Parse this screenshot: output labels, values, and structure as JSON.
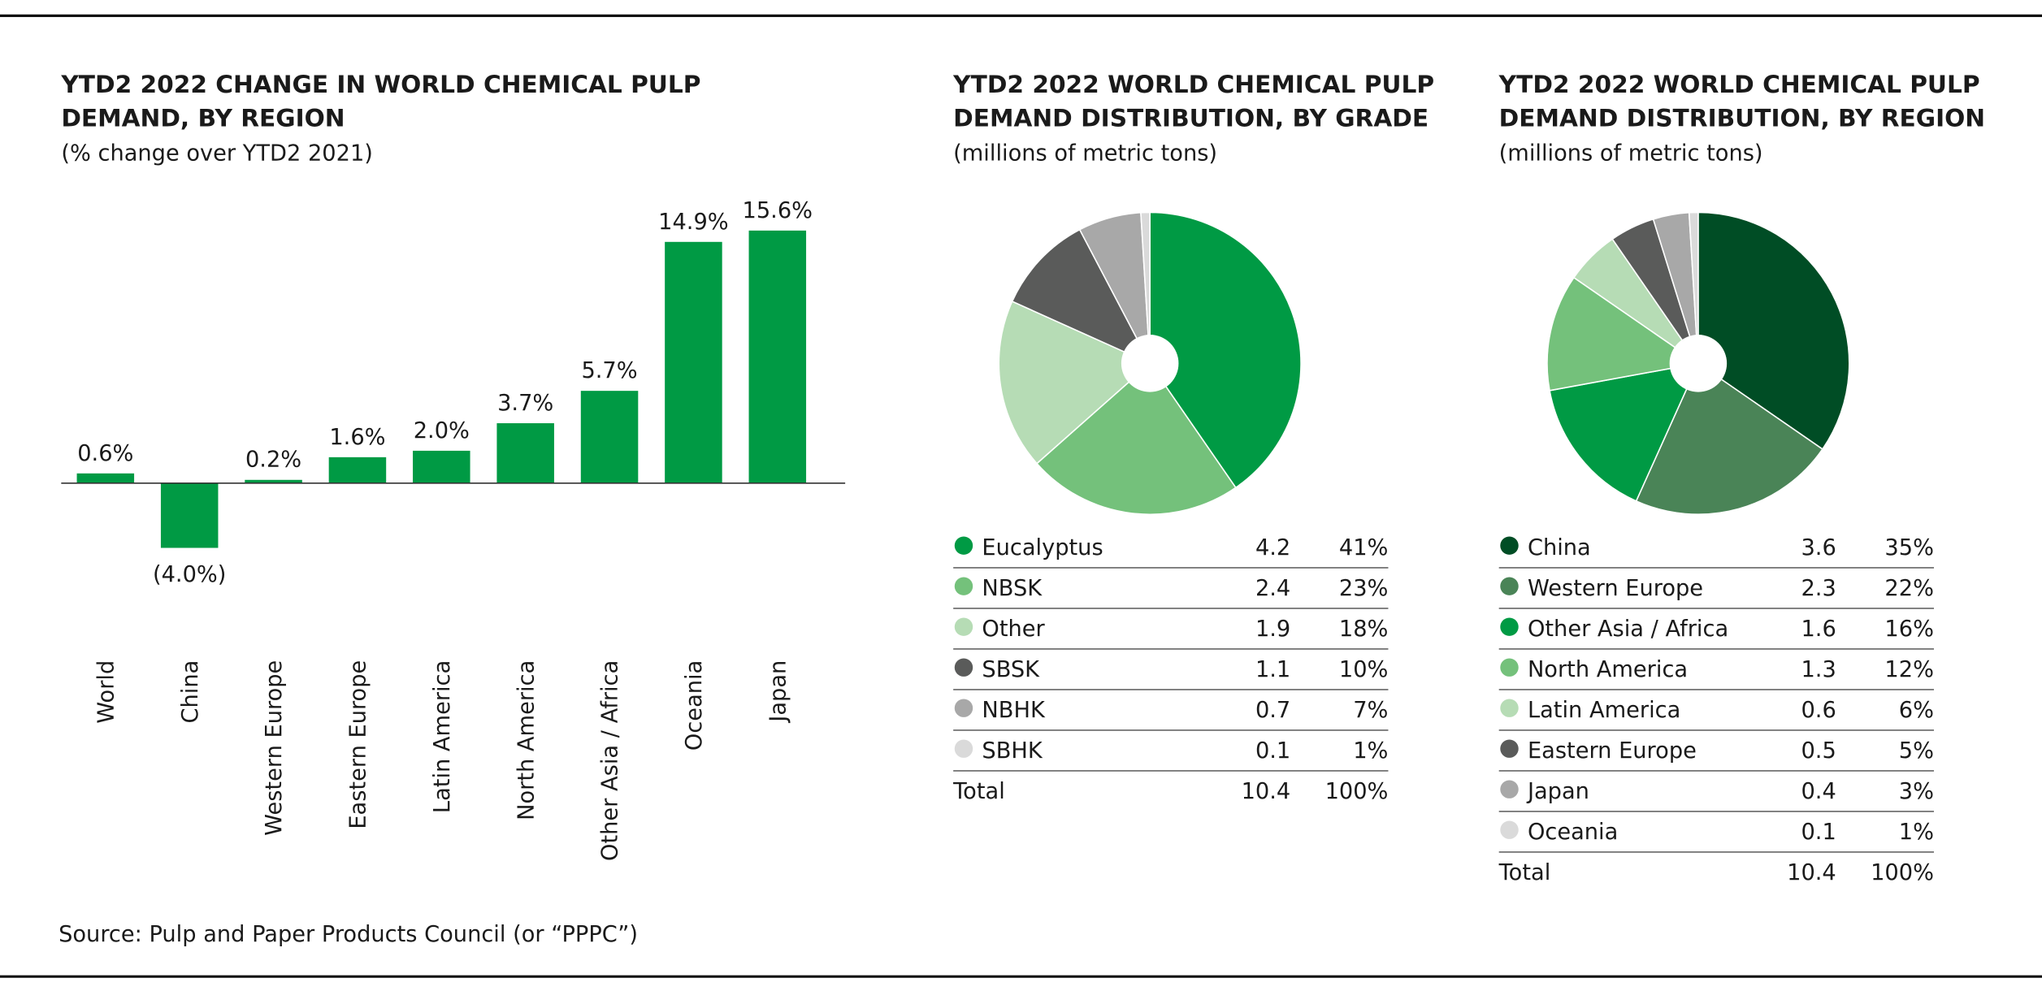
{
  "chart_data": [
    {
      "type": "bar",
      "title": "YTD2 2022 CHANGE IN WORLD CHEMICAL PULP DEMAND, BY REGION",
      "subtitle": "(% change over YTD2 2021)",
      "categories": [
        "World",
        "China",
        "Western Europe",
        "Eastern Europe",
        "Latin America",
        "North America",
        "Other Asia / Africa",
        "Oceania",
        "Japan"
      ],
      "values": [
        0.6,
        -4.0,
        0.2,
        1.6,
        2.0,
        3.7,
        5.7,
        14.9,
        15.6
      ],
      "value_labels": [
        "0.6%",
        "(4.0%)",
        "0.2%",
        "1.6%",
        "2.0%",
        "3.7%",
        "5.7%",
        "14.9%",
        "15.6%"
      ],
      "color": "#009a44",
      "source": "Source: Pulp and Paper Products Council (or “PPPC”)"
    },
    {
      "type": "pie",
      "title": "YTD2 2022 WORLD CHEMICAL PULP DEMAND DISTRIBUTION, BY GRADE",
      "subtitle": "(millions of metric tons)",
      "categories": [
        "Eucalyptus",
        "NBSK",
        "Other",
        "SBSK",
        "NBHK",
        "SBHK"
      ],
      "values": [
        4.2,
        2.4,
        1.9,
        1.1,
        0.7,
        0.1
      ],
      "percent_labels": [
        "41%",
        "23%",
        "18%",
        "10%",
        "7%",
        "1%"
      ],
      "colors": [
        "#009a44",
        "#74c17b",
        "#b6dcb5",
        "#5a5b5a",
        "#a8a8a8",
        "#dadada"
      ],
      "total_label": "Total",
      "total": 10.4,
      "total_percent_label": "100%"
    },
    {
      "type": "pie",
      "title": "YTD2 2022 WORLD CHEMICAL PULP DEMAND DISTRIBUTION, BY REGION",
      "subtitle": "(millions of metric tons)",
      "categories": [
        "China",
        "Western Europe",
        "Other Asia / Africa",
        "North America",
        "Latin America",
        "Eastern Europe",
        "Japan",
        "Oceania"
      ],
      "values": [
        3.6,
        2.3,
        1.6,
        1.3,
        0.6,
        0.5,
        0.4,
        0.1
      ],
      "percent_labels": [
        "35%",
        "22%",
        "16%",
        "12%",
        "6%",
        "5%",
        "3%",
        "1%"
      ],
      "colors": [
        "#004d25",
        "#4a8457",
        "#009a44",
        "#74c17b",
        "#b6dcb5",
        "#5a5b5a",
        "#a8a8a8",
        "#dadada"
      ],
      "total_label": "Total",
      "total": 10.4,
      "total_percent_label": "100%"
    }
  ]
}
